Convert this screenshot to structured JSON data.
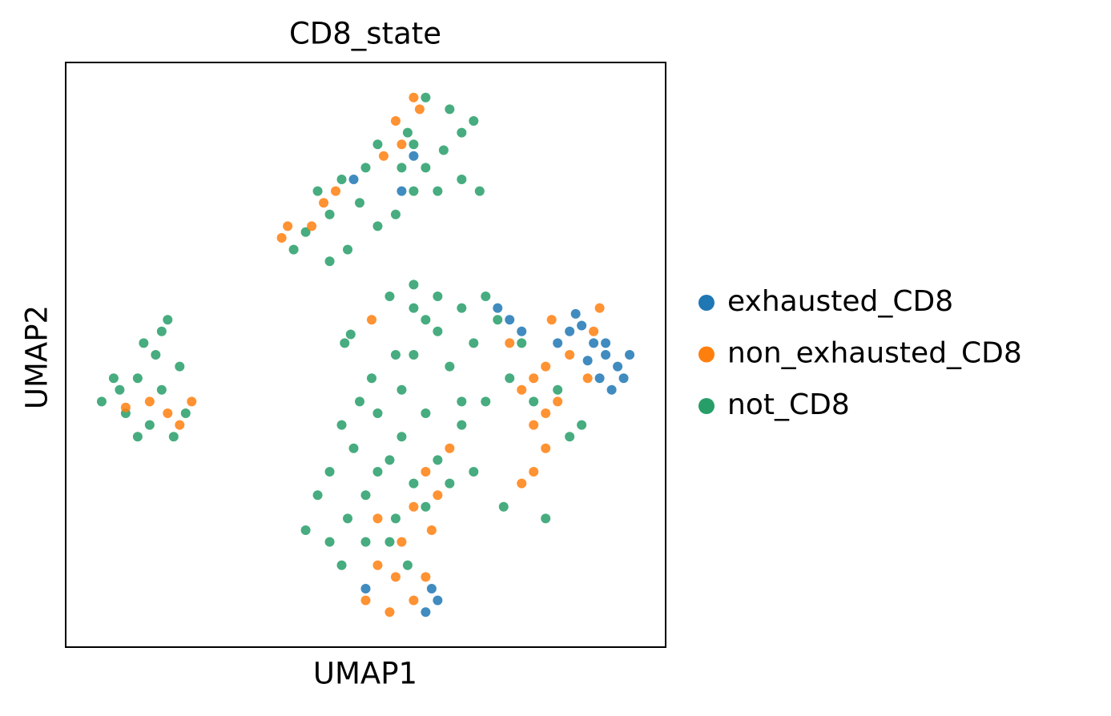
{
  "chart_data": {
    "type": "scatter",
    "title": "CD8_state",
    "x_label": "UMAP1",
    "y_label": "UMAP2",
    "xlim": [
      0,
      100
    ],
    "ylim": [
      0,
      100
    ],
    "legend": "right",
    "series": [
      {
        "name": "exhausted_CD8",
        "color": "#1f77b4",
        "x": [
          60,
          62,
          61,
          72,
          74,
          76,
          82,
          84,
          86,
          88,
          90,
          92,
          93,
          91,
          89,
          90,
          87,
          94,
          58,
          56,
          48,
          50,
          85
        ],
        "y": [
          6,
          8,
          10,
          58,
          56,
          54,
          52,
          54,
          55,
          52,
          50,
          48,
          46,
          44,
          46,
          52,
          49,
          50,
          84,
          78,
          80,
          10,
          57
        ]
      },
      {
        "name": "non_exhausted_CD8",
        "color": "#ff7f0e",
        "x": [
          10,
          14,
          17,
          19,
          21,
          58,
          59,
          55,
          56,
          45,
          43,
          37,
          36,
          41,
          53,
          50,
          54,
          58,
          55,
          52,
          60,
          56,
          52,
          61,
          58,
          62,
          60,
          76,
          78,
          80,
          78,
          80,
          76,
          78,
          80,
          84,
          88,
          87,
          89,
          81,
          74,
          64,
          51,
          82
        ],
        "y": [
          41,
          42,
          40,
          38,
          42,
          94,
          92,
          90,
          86,
          78,
          76,
          72,
          70,
          72,
          84,
          8,
          6,
          8,
          12,
          14,
          12,
          18,
          22,
          20,
          24,
          26,
          30,
          28,
          30,
          34,
          38,
          40,
          44,
          46,
          48,
          50,
          54,
          46,
          58,
          56,
          52,
          34,
          56,
          42
        ]
      },
      {
        "name": "not_CD8",
        "color": "#279e68",
        "x": [
          6,
          9,
          12,
          15,
          16,
          17,
          13,
          10,
          14,
          18,
          20,
          12,
          8,
          19,
          16,
          40,
          44,
          42,
          46,
          49,
          52,
          55,
          58,
          60,
          63,
          66,
          68,
          64,
          60,
          57,
          62,
          66,
          69,
          56,
          50,
          47,
          44,
          38,
          52,
          58,
          46.5,
          47.5,
          44,
          47,
          50,
          52,
          48,
          44,
          46,
          52,
          56,
          58,
          62,
          66,
          70,
          68,
          64,
          60,
          56,
          54,
          42,
          40,
          46,
          50,
          55,
          58,
          62,
          66,
          70,
          74,
          78,
          84,
          86,
          82,
          76,
          72,
          62,
          60,
          58,
          55,
          51,
          49,
          54,
          57,
          60,
          64,
          68,
          80,
          73,
          66,
          58,
          54
        ],
        "y": [
          42,
          44,
          46,
          50,
          54,
          56,
          52,
          40,
          38,
          36,
          40,
          36,
          46,
          48,
          44,
          71,
          74,
          78,
          80,
          76,
          72,
          74,
          78,
          82,
          85,
          88,
          90,
          92,
          94,
          88,
          78,
          80,
          78,
          82,
          82,
          68,
          66,
          68,
          86,
          86,
          52,
          53.5,
          18,
          22,
          26,
          30,
          34,
          30,
          38,
          40,
          44,
          50,
          54,
          58,
          60,
          52,
          48,
          40,
          36,
          32,
          26,
          20,
          14,
          18,
          22,
          28,
          32,
          38,
          42,
          46,
          42,
          36,
          38,
          44,
          52,
          56,
          60,
          56,
          58,
          50,
          46,
          42,
          18,
          14,
          24,
          28,
          30,
          22,
          24,
          42,
          62,
          60
        ]
      }
    ]
  }
}
